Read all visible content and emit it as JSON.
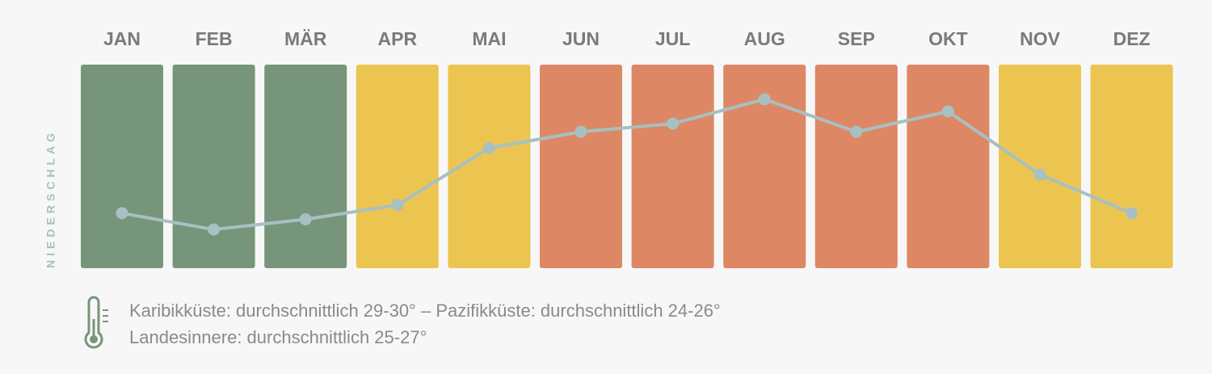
{
  "chart_data": {
    "type": "line",
    "categories": [
      "JAN",
      "FEB",
      "MÄR",
      "APR",
      "MAI",
      "JUN",
      "JUL",
      "AUG",
      "SEP",
      "OKT",
      "NOV",
      "DEZ"
    ],
    "column_colors": [
      "#76957a",
      "#76957a",
      "#76957a",
      "#ecc551",
      "#ecc551",
      "#de8765",
      "#de8765",
      "#de8765",
      "#de8765",
      "#de8765",
      "#ecc551",
      "#ecc551"
    ],
    "values": [
      27,
      19,
      24,
      31,
      59,
      67,
      71,
      83,
      67,
      77,
      46,
      27
    ],
    "color": "#a7c0c2",
    "ylim": [
      0,
      100
    ],
    "ylabel": "NIEDERSCHLAG",
    "notes": [
      "Karibikküste: durchschnittlich 29-30° –  Pazifikküste: durchschnittlich 24-26°",
      "Landesinnere: durchschnittlich 25-27°"
    ]
  }
}
